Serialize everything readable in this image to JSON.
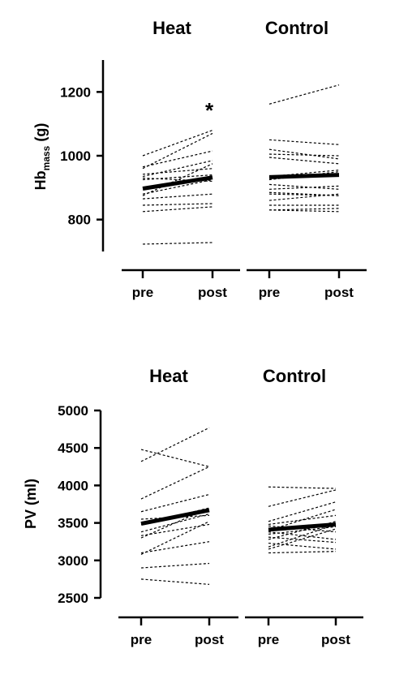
{
  "chart_data": [
    {
      "type": "line",
      "ylabel_main": "Hb",
      "ylabel_sub": "mass",
      "ylabel_unit": " (g)",
      "ylim": [
        700,
        1300
      ],
      "yticks": [
        800,
        1000,
        1200
      ],
      "yticklabels": [
        "800",
        "1000",
        "1200"
      ],
      "panels": [
        {
          "title": "Heat",
          "categories": [
            "pre",
            "post"
          ],
          "annotation": "*",
          "subjects": [
            [
              1000,
              1080
            ],
            [
              965,
              1015
            ],
            [
              960,
              1070
            ],
            [
              942,
              960
            ],
            [
              935,
              985
            ],
            [
              925,
              940
            ],
            [
              930,
              920
            ],
            [
              900,
              935
            ],
            [
              875,
              975
            ],
            [
              880,
              925
            ],
            [
              865,
              880
            ],
            [
              845,
              850
            ],
            [
              825,
              840
            ],
            [
              723,
              728
            ]
          ],
          "mean": [
            897,
            932
          ]
        },
        {
          "title": "Control",
          "categories": [
            "pre",
            "post"
          ],
          "subjects": [
            [
              1162,
              1222
            ],
            [
              1050,
              1035
            ],
            [
              1020,
              990
            ],
            [
              1005,
              1000
            ],
            [
              995,
              975
            ],
            [
              935,
              955
            ],
            [
              925,
              950
            ],
            [
              910,
              895
            ],
            [
              895,
              905
            ],
            [
              885,
              875
            ],
            [
              880,
              875
            ],
            [
              860,
              880
            ],
            [
              845,
              845
            ],
            [
              830,
              825
            ],
            [
              830,
              835
            ]
          ],
          "mean": [
            933,
            940
          ]
        }
      ]
    },
    {
      "type": "line",
      "ylabel_main": "PV (ml)",
      "ylim": [
        2500,
        5000
      ],
      "yticks": [
        2500,
        3000,
        3500,
        4000,
        4500,
        5000
      ],
      "yticklabels": [
        "2500",
        "3000",
        "3500",
        "4000",
        "4500",
        "5000"
      ],
      "panels": [
        {
          "title": "Heat",
          "categories": [
            "pre",
            "post"
          ],
          "subjects": [
            [
              4480,
              4250
            ],
            [
              4320,
              4770
            ],
            [
              3820,
              4250
            ],
            [
              3650,
              3880
            ],
            [
              3550,
              3600
            ],
            [
              3480,
              3700
            ],
            [
              3380,
              3620
            ],
            [
              3330,
              3480
            ],
            [
              3300,
              3700
            ],
            [
              3100,
              3250
            ],
            [
              3080,
              3520
            ],
            [
              2900,
              2960
            ],
            [
              2750,
              2680
            ]
          ],
          "mean": [
            3490,
            3670
          ]
        },
        {
          "title": "Control",
          "categories": [
            "pre",
            "post"
          ],
          "subjects": [
            [
              3980,
              3960
            ],
            [
              3720,
              3940
            ],
            [
              3520,
              3780
            ],
            [
              3480,
              3600
            ],
            [
              3460,
              3380
            ],
            [
              3400,
              3680
            ],
            [
              3380,
              3280
            ],
            [
              3350,
              3450
            ],
            [
              3310,
              3240
            ],
            [
              3280,
              3520
            ],
            [
              3230,
              3150
            ],
            [
              3180,
              3480
            ],
            [
              3150,
              3420
            ],
            [
              3100,
              3120
            ]
          ],
          "mean": [
            3410,
            3480
          ]
        }
      ]
    }
  ]
}
